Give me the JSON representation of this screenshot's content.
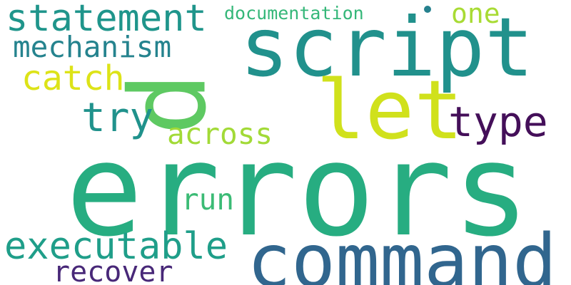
{
  "words": [
    {
      "text": "errors",
      "color": "#27ad81"
    },
    {
      "text": "command",
      "color": "#31668e"
    },
    {
      "text": "script",
      "color": "#21918c"
    },
    {
      "text": "let",
      "color": "#d0e11c"
    },
    {
      "text": "p",
      "color": "#5ec962"
    },
    {
      "text": "statement",
      "color": "#1f958b"
    },
    {
      "text": "executable",
      "color": "#1f9e89"
    },
    {
      "text": "type",
      "color": "#440f59"
    },
    {
      "text": "try",
      "color": "#20928c"
    },
    {
      "text": "catch",
      "color": "#dde318"
    },
    {
      "text": "mechanism",
      "color": "#25838e"
    },
    {
      "text": "across",
      "color": "#a2da37"
    },
    {
      "text": "run",
      "color": "#3bbb75"
    },
    {
      "text": "recover",
      "color": "#482878"
    },
    {
      "text": "one",
      "color": "#a8db34"
    },
    {
      "text": "documentation",
      "color": "#35b779"
    },
    {
      "text": "dot",
      "color": "#26818e"
    }
  ]
}
